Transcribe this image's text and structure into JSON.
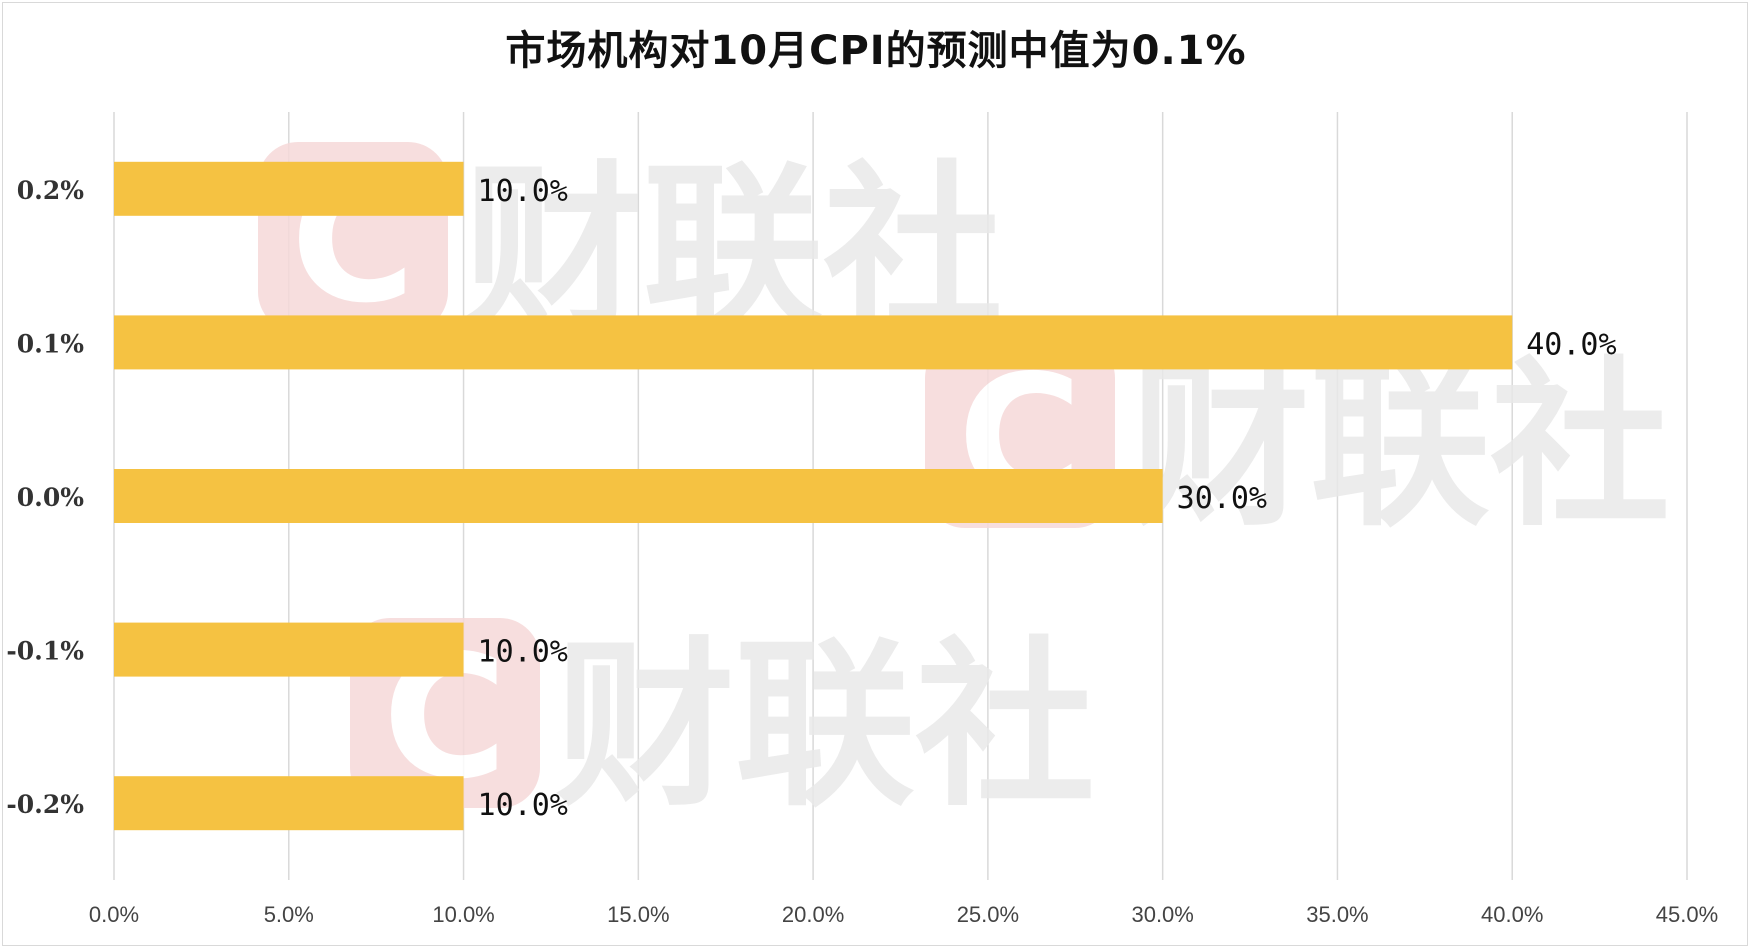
{
  "chart_data": {
    "type": "bar",
    "orientation": "horizontal",
    "title": "市场机构对10月CPI的预测中值为0.1%",
    "categories": [
      "0.2%",
      "0.1%",
      "0.0%",
      "-0.1%",
      "-0.2%"
    ],
    "values": [
      10.0,
      40.0,
      30.0,
      10.0,
      10.0
    ],
    "value_labels": [
      "10.0%",
      "40.0%",
      "30.0%",
      "10.0%",
      "10.0%"
    ],
    "xlim": [
      0,
      45
    ],
    "x_ticks": [
      0,
      5,
      10,
      15,
      20,
      25,
      30,
      35,
      40,
      45
    ],
    "x_tick_labels": [
      "0.0%",
      "5.0%",
      "10.0%",
      "15.0%",
      "20.0%",
      "25.0%",
      "30.0%",
      "35.0%",
      "40.0%",
      "45.0%"
    ],
    "grid": "vertical",
    "bar_color": "#F5C242"
  },
  "watermark": {
    "text": "财联社",
    "logo_letter": "C",
    "logo_color": "#F6D9D9",
    "text_color": "#E9E9E9"
  }
}
